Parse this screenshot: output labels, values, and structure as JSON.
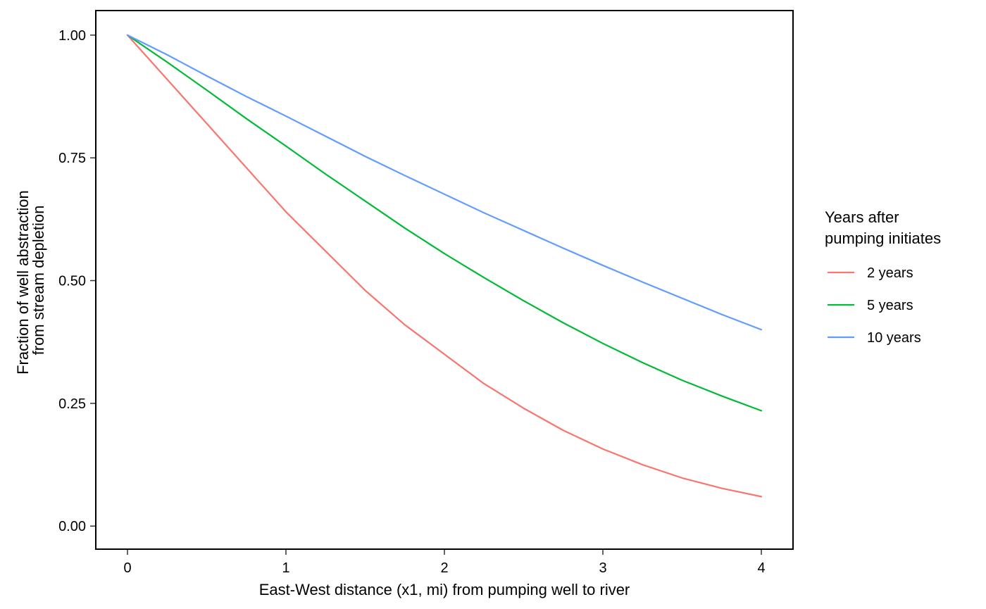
{
  "chart_data": {
    "type": "line",
    "xlabel": "East-West distance (x1, mi) from pumping well to river",
    "ylabel_lines": [
      "Fraction of well abstraction",
      "from stream depletion"
    ],
    "xlim": [
      -0.2,
      4.2
    ],
    "ylim": [
      -0.047,
      1.05
    ],
    "x_ticks": [
      0,
      1,
      2,
      3,
      4
    ],
    "x_tick_labels": [
      "0",
      "1",
      "2",
      "3",
      "4"
    ],
    "y_ticks": [
      0,
      0.25,
      0.5,
      0.75,
      1.0
    ],
    "y_tick_labels": [
      "0.00",
      "0.25",
      "0.50",
      "0.75",
      "1.00"
    ],
    "grid": false,
    "legend": {
      "title_lines": [
        "Years after",
        "pumping initiates"
      ],
      "position": "right"
    },
    "x": [
      0,
      0.25,
      0.5,
      0.75,
      1.0,
      1.25,
      1.5,
      1.75,
      2.0,
      2.25,
      2.5,
      2.75,
      3.0,
      3.25,
      3.5,
      3.75,
      4.0
    ],
    "series": [
      {
        "name": "2 years",
        "color": "#F8766D",
        "values": [
          1.0,
          0.91,
          0.82,
          0.73,
          0.64,
          0.56,
          0.48,
          0.41,
          0.35,
          0.29,
          0.24,
          0.195,
          0.157,
          0.125,
          0.098,
          0.077,
          0.06
        ]
      },
      {
        "name": "5 years",
        "color": "#00BA38",
        "values": [
          1.0,
          0.945,
          0.888,
          0.83,
          0.774,
          0.717,
          0.662,
          0.607,
          0.555,
          0.506,
          0.459,
          0.414,
          0.372,
          0.333,
          0.297,
          0.265,
          0.235
        ]
      },
      {
        "name": "10 years",
        "color": "#619CFF",
        "values": [
          1.0,
          0.96,
          0.917,
          0.875,
          0.835,
          0.794,
          0.753,
          0.714,
          0.676,
          0.638,
          0.602,
          0.566,
          0.531,
          0.497,
          0.464,
          0.431,
          0.4
        ]
      }
    ]
  }
}
